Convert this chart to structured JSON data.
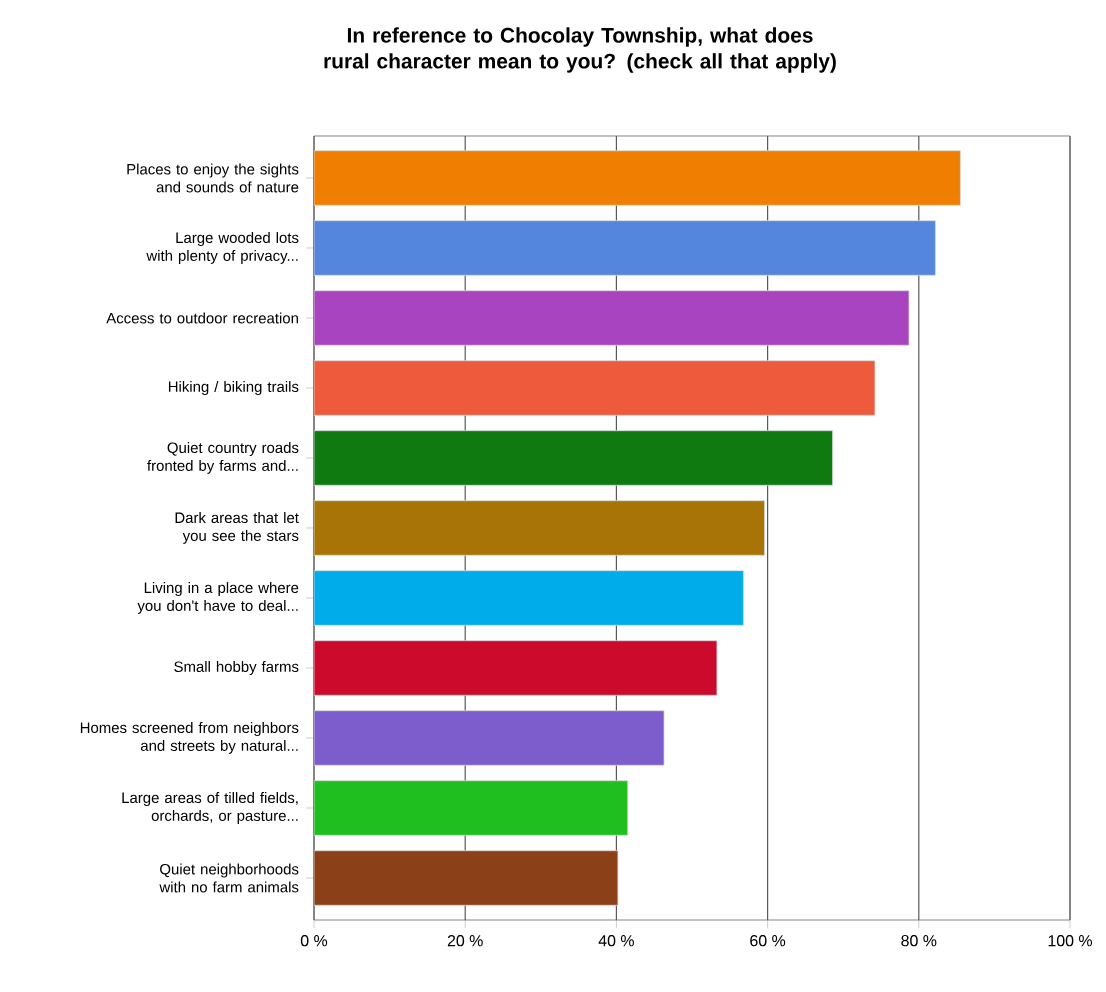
{
  "chart_data": {
    "type": "bar",
    "orientation": "horizontal",
    "title": "In reference to Chocolay Township, what does rural character mean to you?  (check all that apply)",
    "categories": [
      "Places to enjoy the sights and sounds of nature",
      "Large wooded lots with plenty of privacy...",
      "Access to outdoor recreation",
      "Hiking / biking trails",
      "Quiet country roads fronted by farms and...",
      "Dark areas that let you see the stars",
      "Living in a place where you don't have to deal...",
      "Small hobby farms",
      "Homes screened from neighbors and streets by natural...",
      "Large areas of tilled fields, orchards, or pasture...",
      "Quiet neighborhoods with no farm animals"
    ],
    "values": [
      85.5,
      82.2,
      78.7,
      74.2,
      68.6,
      59.6,
      56.8,
      53.3,
      46.3,
      41.5,
      40.2
    ],
    "colors": [
      "#f07e00",
      "#5586dd",
      "#a844c0",
      "#ee5a3c",
      "#0e7a10",
      "#a87408",
      "#00acea",
      "#cc0a2c",
      "#7d5ccc",
      "#1fbf1f",
      "#8c4018"
    ],
    "xlim": [
      0,
      100
    ],
    "xticks": [
      {
        "value": 0,
        "label": "0 %"
      },
      {
        "value": 20,
        "label": "20 %"
      },
      {
        "value": 40,
        "label": "40 %"
      },
      {
        "value": 60,
        "label": "60 %"
      },
      {
        "value": 80,
        "label": "80 %"
      },
      {
        "value": 100,
        "label": "100 %"
      }
    ],
    "grid": "x"
  }
}
